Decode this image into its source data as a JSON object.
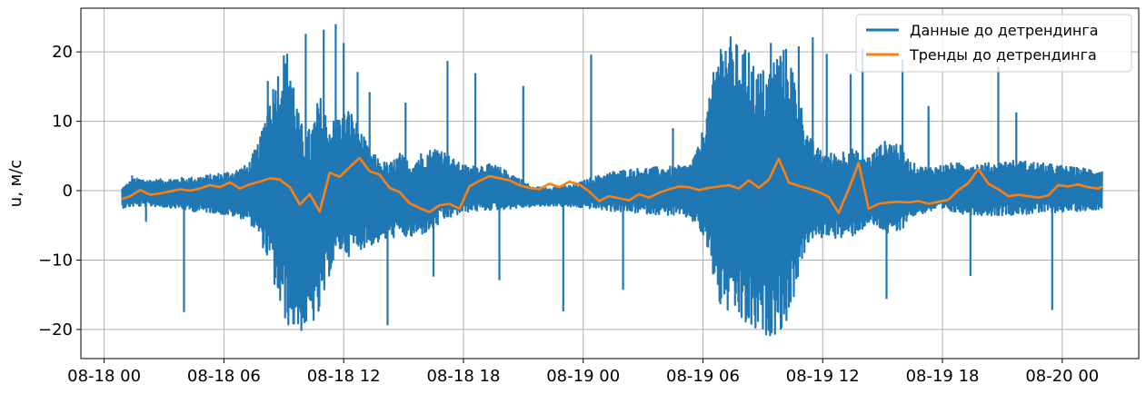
{
  "chart_data": {
    "type": "line",
    "title": "",
    "xlabel": "",
    "ylabel": "u, м/с",
    "x_range": [
      "2024-08-17T22:50",
      "2024-08-20T03:50"
    ],
    "ylim": [
      -24.2,
      26.3
    ],
    "grid": true,
    "legend_position": "top-right",
    "x_tick_labels": [
      "08-18 00",
      "08-18 06",
      "08-18 12",
      "08-18 18",
      "08-19 00",
      "08-19 06",
      "08-19 12",
      "08-19 18",
      "08-20 00"
    ],
    "x_ticks": [
      "2024-08-18T00:00",
      "2024-08-18T06:00",
      "2024-08-18T12:00",
      "2024-08-18T18:00",
      "2024-08-19T00:00",
      "2024-08-19T06:00",
      "2024-08-19T12:00",
      "2024-08-19T18:00",
      "2024-08-20T00:00"
    ],
    "y_tick_labels": [
      "−20",
      "−10",
      "0",
      "10",
      "20"
    ],
    "y_ticks": [
      -20,
      -10,
      0,
      10,
      20
    ],
    "series": [
      {
        "name": "Данные до детрендинга",
        "color": "#1f77b4",
        "envelope_hours": [
          0.9,
          1.5,
          2.5,
          3.5,
          4.5,
          5.5,
          6.5,
          7.2,
          7.8,
          8.3,
          8.8,
          9.3,
          9.8,
          10.3,
          10.8,
          11.3,
          11.8,
          12.3,
          12.8,
          13.3,
          13.8,
          14.3,
          14.8,
          15.3,
          15.8,
          16.3,
          16.8,
          17.3,
          17.8,
          18.3,
          18.8,
          19.5,
          20.5,
          21.5,
          22.5,
          23.5,
          24.5,
          25.5,
          26.5,
          27.5,
          28.5,
          29.3,
          29.8,
          30.3,
          30.8,
          31.3,
          31.8,
          32.3,
          32.8,
          33.3,
          33.8,
          34.3,
          34.8,
          35.3,
          35.8,
          36.3,
          36.8,
          37.3,
          37.8,
          38.3,
          38.8,
          39.3,
          39.8,
          40.3,
          40.8,
          41.5,
          42.5,
          43.5,
          44.5,
          45.5,
          46.5,
          47.5,
          48.5,
          49.5,
          50.0
        ],
        "upper": [
          0.5,
          1.8,
          1.6,
          1.8,
          2.0,
          2.4,
          3.0,
          3.8,
          7.5,
          14.0,
          18.5,
          21.0,
          10.0,
          9.0,
          14.0,
          10.0,
          11.0,
          12.0,
          9.0,
          6.0,
          4.5,
          4.0,
          5.5,
          4.2,
          5.5,
          6.0,
          6.5,
          5.0,
          4.0,
          3.5,
          3.8,
          3.8,
          2.4,
          0.5,
          0.6,
          0.8,
          2.0,
          2.8,
          3.2,
          3.4,
          3.5,
          3.8,
          6.5,
          13.0,
          22.0,
          22.5,
          21.0,
          20.0,
          17.5,
          18.0,
          21.0,
          20.5,
          14.0,
          8.0,
          6.0,
          5.5,
          5.5,
          6.5,
          5.5,
          5.0,
          6.5,
          7.5,
          7.0,
          4.5,
          3.5,
          3.5,
          4.0,
          4.0,
          4.0,
          4.5,
          4.2,
          3.8,
          3.4,
          3.2,
          3.0
        ],
        "lower": [
          -2.5,
          -2.3,
          -2.3,
          -2.5,
          -3.0,
          -3.2,
          -3.8,
          -4.2,
          -7.0,
          -11.0,
          -17.5,
          -20.0,
          -20.5,
          -19.5,
          -18.5,
          -12.0,
          -9.0,
          -9.5,
          -8.5,
          -8.0,
          -7.5,
          -7.0,
          -6.5,
          -7.0,
          -6.5,
          -6.0,
          -5.0,
          -4.0,
          -3.5,
          -3.0,
          -3.0,
          -2.8,
          -2.6,
          -2.3,
          -2.2,
          -2.4,
          -2.6,
          -3.0,
          -3.2,
          -3.4,
          -3.6,
          -4.0,
          -5.5,
          -9.5,
          -17.0,
          -18.0,
          -19.0,
          -20.5,
          -21.0,
          -21.0,
          -20.5,
          -19.0,
          -12.0,
          -7.5,
          -7.0,
          -6.5,
          -7.0,
          -7.0,
          -6.0,
          -5.0,
          -5.5,
          -6.5,
          -6.5,
          -4.0,
          -3.5,
          -3.0,
          -3.2,
          -3.5,
          -3.6,
          -3.5,
          -3.4,
          -3.2,
          -3.0,
          -2.8,
          -2.6
        ],
        "spikes_hours": [
          1.4,
          2.1,
          4.0,
          8.2,
          9.0,
          10.1,
          11.0,
          11.6,
          12.0,
          12.7,
          13.3,
          14.2,
          15.1,
          16.5,
          17.2,
          18.6,
          19.8,
          21.0,
          23.0,
          24.4,
          26.0,
          28.5,
          31.0,
          32.3,
          33.4,
          34.8,
          35.5,
          36.2,
          37.4,
          38.0,
          39.2,
          40.0,
          41.3,
          43.4,
          44.8,
          45.7,
          47.5,
          48.6
        ],
        "spike_values": [
          2.2,
          -4.5,
          -17.5,
          15.8,
          19.5,
          22.6,
          23.2,
          24.0,
          21.3,
          17.1,
          14.2,
          -19.4,
          12.7,
          -12.4,
          18.7,
          16.9,
          -12.9,
          15.1,
          -17.4,
          19.6,
          -14.3,
          9.0,
          18.7,
          19.9,
          21.3,
          20.8,
          22.1,
          19.7,
          16.8,
          20.5,
          -15.6,
          18.9,
          12.2,
          -12.3,
          17.9,
          11.3,
          -17.2,
          2.4
        ]
      },
      {
        "name": "Тренды до детрендинга",
        "color": "#ff7f0e",
        "x_hours": [
          0.9,
          1.3,
          1.8,
          2.3,
          2.8,
          3.3,
          3.8,
          4.3,
          4.8,
          5.3,
          5.8,
          6.3,
          6.8,
          7.3,
          7.8,
          8.3,
          8.8,
          9.3,
          9.8,
          10.3,
          10.8,
          11.3,
          11.8,
          12.3,
          12.8,
          13.3,
          13.8,
          14.3,
          14.8,
          15.3,
          15.8,
          16.3,
          16.8,
          17.3,
          17.8,
          18.3,
          18.8,
          19.3,
          19.8,
          20.3,
          20.8,
          21.3,
          21.8,
          22.3,
          22.8,
          23.3,
          23.8,
          24.3,
          24.8,
          25.3,
          25.8,
          26.3,
          26.8,
          27.3,
          27.8,
          28.3,
          28.8,
          29.3,
          29.8,
          30.3,
          30.8,
          31.3,
          31.8,
          32.3,
          32.8,
          33.3,
          33.8,
          34.3,
          34.8,
          35.3,
          35.8,
          36.3,
          36.8,
          37.3,
          37.8,
          38.3,
          38.8,
          39.3,
          39.8,
          40.3,
          40.8,
          41.3,
          41.8,
          42.3,
          42.8,
          43.3,
          43.8,
          44.3,
          44.8,
          45.3,
          45.8,
          46.3,
          46.8,
          47.3,
          47.8,
          48.3,
          48.8,
          49.3,
          49.8,
          50.0
        ],
        "y": [
          -1.2,
          -0.8,
          0.1,
          -0.6,
          -0.4,
          -0.1,
          0.2,
          0.0,
          0.3,
          0.8,
          0.5,
          1.2,
          0.3,
          0.9,
          1.3,
          1.8,
          1.6,
          0.5,
          -2.0,
          -0.5,
          -3.0,
          2.6,
          2.0,
          3.4,
          4.7,
          2.8,
          2.3,
          0.4,
          -0.2,
          -1.8,
          -2.5,
          -3.1,
          -2.1,
          -1.9,
          -2.6,
          0.6,
          1.4,
          2.1,
          1.8,
          1.5,
          0.8,
          0.4,
          0.2,
          1.0,
          0.5,
          1.3,
          0.9,
          -0.1,
          -1.5,
          -0.8,
          -1.1,
          -1.4,
          -0.5,
          -1.0,
          -0.3,
          0.2,
          0.6,
          0.5,
          0.1,
          0.4,
          0.6,
          0.8,
          0.3,
          1.5,
          0.4,
          1.6,
          4.6,
          1.2,
          0.7,
          0.3,
          -0.2,
          -0.9,
          -3.2,
          0.2,
          4.0,
          -2.6,
          -1.9,
          -1.7,
          -1.6,
          -1.7,
          -1.5,
          -1.9,
          -1.6,
          -1.3,
          0.1,
          1.1,
          3.1,
          1.0,
          0.2,
          -0.8,
          -0.6,
          -0.8,
          -1.0,
          -0.7,
          0.8,
          0.6,
          0.9,
          0.5,
          0.3,
          0.6
        ]
      }
    ]
  }
}
